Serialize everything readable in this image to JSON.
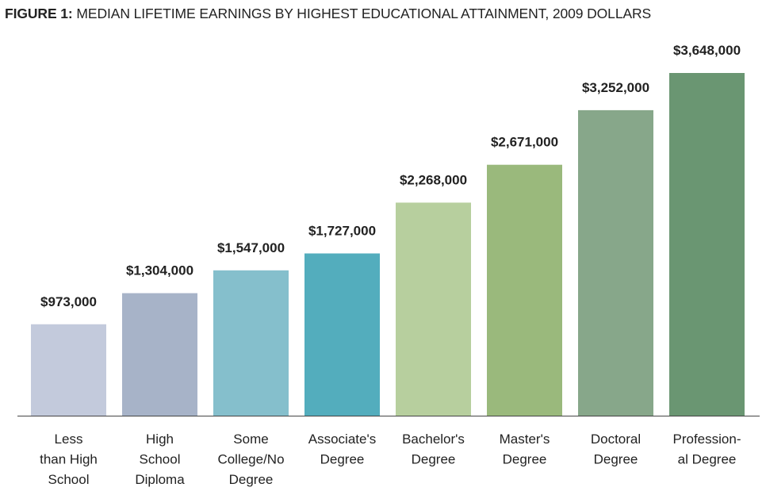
{
  "figure": {
    "prefix": "FIGURE 1:",
    "title": "MEDIAN LIFETIME EARNINGS BY HIGHEST EDUCATIONAL ATTAINMENT, 2009 DOLLARS"
  },
  "chart_data": {
    "type": "bar",
    "title": "FIGURE 1: MEDIAN LIFETIME EARNINGS BY HIGHEST EDUCATIONAL ATTAINMENT, 2009 DOLLARS",
    "xlabel": "",
    "ylabel": "",
    "ylim": [
      0,
      3648000
    ],
    "grid": false,
    "categories": [
      [
        "Less",
        "than High",
        "School"
      ],
      [
        "High",
        "School",
        "Diploma"
      ],
      [
        "Some",
        "College/No",
        "Degree"
      ],
      [
        "Associate's",
        "Degree"
      ],
      [
        "Bachelor's",
        "Degree"
      ],
      [
        "Master's",
        "Degree"
      ],
      [
        "Doctoral",
        "Degree"
      ],
      [
        "Profession-",
        "al Degree"
      ]
    ],
    "values": [
      973000,
      1304000,
      1547000,
      1727000,
      2268000,
      2671000,
      3252000,
      3648000
    ],
    "value_labels": [
      "$973,000",
      "$1,304,000",
      "$1,547,000",
      "$1,727,000",
      "$2,268,000",
      "$2,671,000",
      "$3,252,000",
      "$3,648,000"
    ],
    "colors": [
      "#c3cadc",
      "#a7b3c8",
      "#85bfcc",
      "#53adbd",
      "#b7cf9e",
      "#9ab97c",
      "#87a78a",
      "#6a9672"
    ]
  }
}
